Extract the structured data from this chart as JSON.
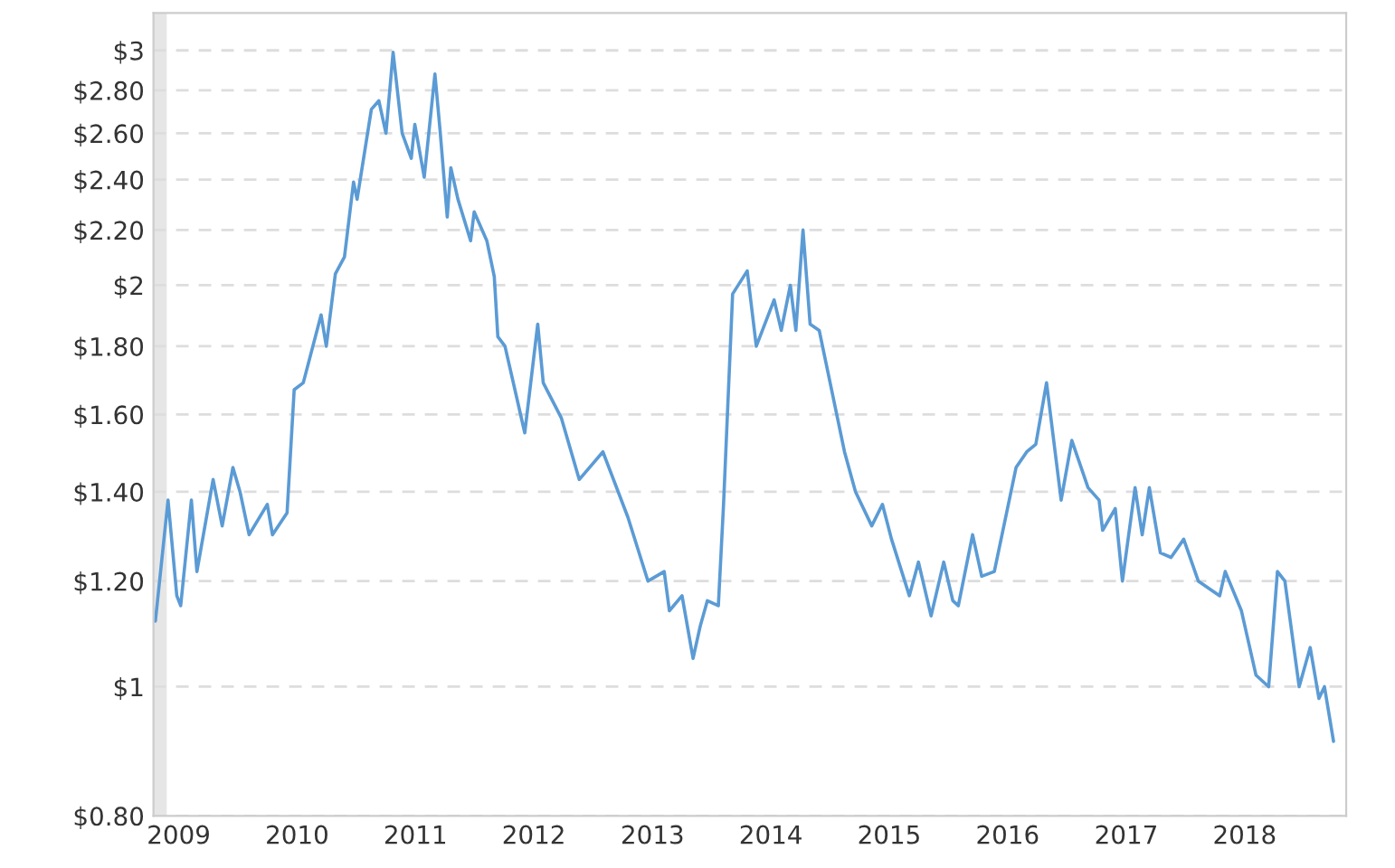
{
  "chart_data": {
    "type": "line",
    "x": [
      "2008-10-21",
      "2008-11-29",
      "2008-12-26",
      "2009-01-07",
      "2009-02-09",
      "2009-02-26",
      "2009-04-17",
      "2009-05-15",
      "2009-06-17",
      "2009-07-09",
      "2009-08-06",
      "2009-10-01",
      "2009-10-17",
      "2009-12-01",
      "2009-12-23",
      "2010-01-20",
      "2010-03-16",
      "2010-04-01",
      "2010-04-29",
      "2010-05-27",
      "2010-06-24",
      "2010-07-05",
      "2010-08-18",
      "2010-09-10",
      "2010-10-02",
      "2010-10-24",
      "2010-11-21",
      "2010-12-19",
      "2010-12-30",
      "2011-01-28",
      "2011-03-02",
      "2011-03-18",
      "2011-04-09",
      "2011-04-20",
      "2011-05-12",
      "2011-06-20",
      "2011-07-01",
      "2011-08-09",
      "2011-09-01",
      "2011-09-12",
      "2011-10-04",
      "2011-12-04",
      "2012-01-13",
      "2012-01-30",
      "2012-03-26",
      "2012-05-20",
      "2012-08-01",
      "2012-10-17",
      "2012-12-18",
      "2013-02-06",
      "2013-02-22",
      "2013-04-02",
      "2013-05-06",
      "2013-05-28",
      "2013-06-19",
      "2013-07-23",
      "2013-08-08",
      "2013-09-05",
      "2013-10-20",
      "2013-11-17",
      "2014-01-11",
      "2014-02-02",
      "2014-03-02",
      "2014-03-19",
      "2014-04-10",
      "2014-05-02",
      "2014-05-30",
      "2014-08-16",
      "2014-09-19",
      "2014-11-08",
      "2014-12-11",
      "2015-01-08",
      "2015-03-04",
      "2015-04-01",
      "2015-05-10",
      "2015-06-18",
      "2015-07-16",
      "2015-08-02",
      "2015-09-15",
      "2015-10-13",
      "2015-11-21",
      "2016-01-27",
      "2016-02-29",
      "2016-03-28",
      "2016-04-30",
      "2016-06-14",
      "2016-07-17",
      "2016-09-05",
      "2016-10-09",
      "2016-10-20",
      "2016-11-28",
      "2016-12-20",
      "2017-01-28",
      "2017-02-19",
      "2017-03-13",
      "2017-04-16",
      "2017-05-19",
      "2017-06-27",
      "2017-08-11",
      "2017-10-16",
      "2017-11-02",
      "2017-12-22",
      "2018-02-05",
      "2018-03-16",
      "2018-04-12",
      "2018-05-05",
      "2018-06-18",
      "2018-07-22",
      "2018-08-18",
      "2018-09-04",
      "2018-10-02"
    ],
    "series": [
      {
        "color": "#5b9bd5",
        "values": [
          1.12,
          1.38,
          1.17,
          1.15,
          1.38,
          1.22,
          1.43,
          1.32,
          1.46,
          1.4,
          1.3,
          1.37,
          1.3,
          1.35,
          1.67,
          1.69,
          1.9,
          1.8,
          2.04,
          2.1,
          2.39,
          2.32,
          2.71,
          2.75,
          2.6,
          2.99,
          2.6,
          2.49,
          2.64,
          2.41,
          2.88,
          2.61,
          2.25,
          2.45,
          2.32,
          2.16,
          2.27,
          2.16,
          2.03,
          1.83,
          1.8,
          1.55,
          1.87,
          1.69,
          1.59,
          1.43,
          1.5,
          1.34,
          1.2,
          1.22,
          1.14,
          1.17,
          1.05,
          1.11,
          1.16,
          1.15,
          1.37,
          1.97,
          2.05,
          1.8,
          1.95,
          1.85,
          2.0,
          1.85,
          2.2,
          1.87,
          1.85,
          1.5,
          1.4,
          1.32,
          1.37,
          1.29,
          1.17,
          1.24,
          1.13,
          1.24,
          1.16,
          1.15,
          1.3,
          1.21,
          1.22,
          1.46,
          1.5,
          1.52,
          1.69,
          1.38,
          1.53,
          1.41,
          1.38,
          1.31,
          1.36,
          1.2,
          1.41,
          1.3,
          1.41,
          1.26,
          1.25,
          1.29,
          1.2,
          1.17,
          1.22,
          1.14,
          1.02,
          1.0,
          1.22,
          1.2,
          1.0,
          1.07,
          0.98,
          1.0,
          0.91
        ]
      }
    ],
    "log": "y",
    "xlim": [
      "2008-10-15",
      "2018-11-10"
    ],
    "xticks": [
      "2009",
      "2010",
      "2011",
      "2012",
      "2013",
      "2014",
      "2015",
      "2016",
      "2017",
      "2018"
    ],
    "ylim": [
      0.8,
      3.2
    ],
    "yticks": [
      {
        "value": 0.8,
        "label": "$0.80"
      },
      {
        "value": 1,
        "label": "$1"
      },
      {
        "value": 1.2,
        "label": "$1.20"
      },
      {
        "value": 1.4,
        "label": "$1.40"
      },
      {
        "value": 1.6,
        "label": "$1.60"
      },
      {
        "value": 1.8,
        "label": "$1.80"
      },
      {
        "value": 2,
        "label": "$2"
      },
      {
        "value": 2.2,
        "label": "$2.20"
      },
      {
        "value": 2.4,
        "label": "$2.40"
      },
      {
        "value": 2.6,
        "label": "$2.60"
      },
      {
        "value": 2.8,
        "label": "$2.80"
      },
      {
        "value": 3,
        "label": "$3"
      }
    ],
    "bands": [
      {
        "axis": "x",
        "from": "2008-10-15",
        "to": "2008-11-25",
        "color": "#e6e6e6"
      }
    ],
    "grid": "y",
    "marker": "none",
    "line_style": "solid"
  }
}
